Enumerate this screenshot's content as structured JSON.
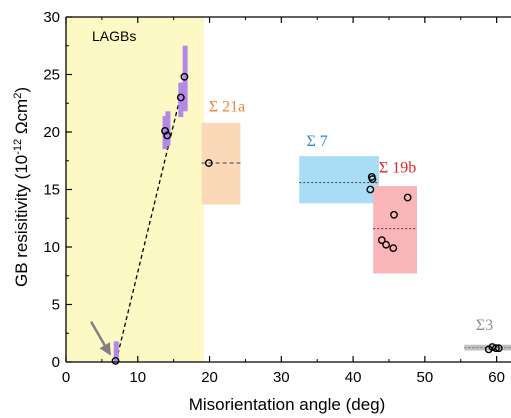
{
  "chart_data": {
    "type": "scatter",
    "xlabel": "Misorientation angle (deg)",
    "ylabel": {
      "prefix": "GB resisitivity (10",
      "exponent": "-12",
      "unit_start": " Ωcm",
      "unit_exp": "2",
      "suffix": ")"
    },
    "xlim": [
      0,
      62
    ],
    "ylim": [
      0,
      30
    ],
    "xticks": [
      0,
      10,
      20,
      30,
      40,
      50,
      60
    ],
    "yticks": [
      0,
      5,
      10,
      15,
      20,
      25,
      30
    ],
    "grid": false,
    "lagb_region": {
      "label": "LAGBs",
      "x_range": [
        0,
        19.2
      ],
      "color": "#fdf9c4"
    },
    "boxes": [
      {
        "name": "Σ 21a",
        "x_range": [
          18.9,
          24.3
        ],
        "y_range": [
          13.7,
          20.8
        ],
        "color": "#fbd8b8",
        "label_color": "#e8873a"
      },
      {
        "name": "Σ 7",
        "x_range": [
          32.5,
          43.6
        ],
        "y_range": [
          13.8,
          17.9
        ],
        "color": "#a9dcf5",
        "label_color": "#3a86c8"
      },
      {
        "name": "Σ 19b",
        "x_range": [
          42.8,
          48.9
        ],
        "y_range": [
          7.7,
          15.3
        ],
        "color": "#f9b5b8",
        "label_color": "#e0242c"
      },
      {
        "name": "Σ3",
        "x_range": [
          55.5,
          62
        ],
        "y_range": [
          1.0,
          1.5
        ],
        "color": "#c0c0c0",
        "label_color": "#8c8c8c"
      }
    ],
    "mean_lines": [
      {
        "x_range": [
          18.9,
          24.3
        ],
        "y": 17.3
      },
      {
        "x_range": [
          32.5,
          43.6
        ],
        "y": 15.6
      },
      {
        "x_range": [
          42.8,
          48.9
        ],
        "y": 11.6
      },
      {
        "x_range": [
          55.5,
          62
        ],
        "y": 1.25
      }
    ],
    "error_bars": [
      {
        "x": 7.0,
        "y_range": [
          0.0,
          1.8
        ]
      },
      {
        "x": 13.8,
        "y_range": [
          18.5,
          21.4
        ]
      },
      {
        "x": 14.2,
        "y_range": [
          18.8,
          21.8
        ]
      },
      {
        "x": 16.0,
        "y_range": [
          21.3,
          24.3
        ]
      },
      {
        "x": 16.6,
        "y_range": [
          21.8,
          27.5
        ]
      }
    ],
    "trend_line": {
      "x": [
        7.0,
        16.6
      ],
      "y": [
        0.1,
        24.8
      ]
    },
    "points": [
      {
        "x": 6.9,
        "y": 0.1
      },
      {
        "x": 13.8,
        "y": 20.1
      },
      {
        "x": 14.1,
        "y": 19.7
      },
      {
        "x": 16.0,
        "y": 23.0
      },
      {
        "x": 16.5,
        "y": 24.8
      },
      {
        "x": 19.9,
        "y": 17.3
      },
      {
        "x": 42.6,
        "y": 16.1
      },
      {
        "x": 42.7,
        "y": 15.9
      },
      {
        "x": 42.4,
        "y": 15.0
      },
      {
        "x": 45.7,
        "y": 12.8
      },
      {
        "x": 44.0,
        "y": 10.6
      },
      {
        "x": 44.6,
        "y": 10.2
      },
      {
        "x": 45.6,
        "y": 9.9
      },
      {
        "x": 47.6,
        "y": 14.3
      },
      {
        "x": 58.9,
        "y": 1.1
      },
      {
        "x": 59.4,
        "y": 1.3
      },
      {
        "x": 59.9,
        "y": 1.2
      },
      {
        "x": 60.3,
        "y": 1.2
      }
    ],
    "arrow": {
      "from": [
        3.5,
        3.5
      ],
      "to": [
        6.1,
        0.7
      ],
      "color": "#808080"
    }
  }
}
